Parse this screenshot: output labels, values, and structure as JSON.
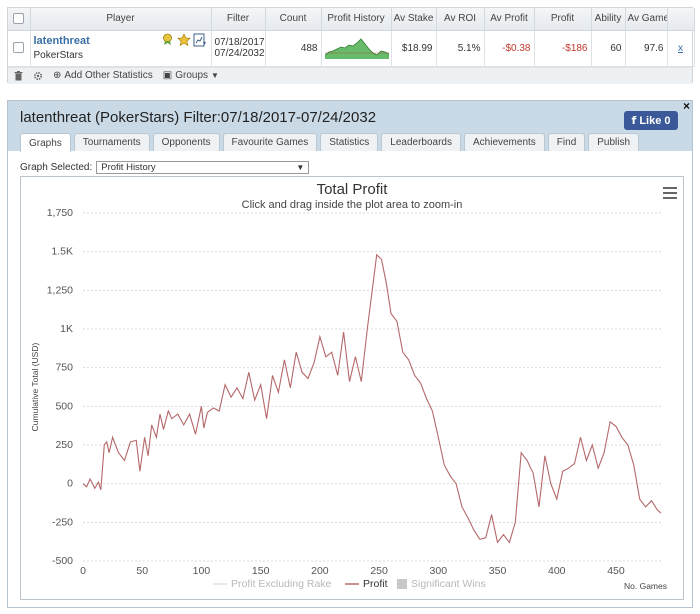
{
  "table": {
    "headers": [
      "Player",
      "Filter",
      "Count",
      "Profit History",
      "Av Stake",
      "Av ROI",
      "Av Profit",
      "Profit",
      "Ability",
      "Av Game"
    ],
    "row": {
      "player": "latenthreat",
      "site": "PokerStars",
      "filter_from": "07/18/2017",
      "filter_to": "07/24/2032",
      "count": "488",
      "av_stake": "$18.99",
      "av_roi": "5.1%",
      "av_profit": "-$0.38",
      "profit": "-$186",
      "ability": "60",
      "av_game": "97.6",
      "remove": "x"
    },
    "icons": [
      "medal-icon",
      "star-icon",
      "chart-icon"
    ]
  },
  "toolbar": {
    "add_stats": "Add Other Statistics",
    "groups": "Groups"
  },
  "panel": {
    "title": "latenthreat (PokerStars) Filter:07/18/2017-07/24/2032",
    "like_label": "Like",
    "like_count": "0",
    "close": "×",
    "tabs": [
      "Graphs",
      "Tournaments",
      "Opponents",
      "Favourite Games",
      "Statistics",
      "Leaderboards",
      "Achievements",
      "Find",
      "Publish"
    ],
    "active_tab": "Graphs",
    "graph_selected_label": "Graph Selected:",
    "graph_selected_value": "Profit History"
  },
  "chart_data": {
    "type": "line",
    "title": "Total Profit",
    "subtitle": "Click and drag inside the plot area to zoom-in",
    "xlabel": "No. Games",
    "ylabel": "Cumulative Total (USD)",
    "xlim": [
      0,
      488
    ],
    "ylim": [
      -500,
      1750
    ],
    "xticks": [
      "0",
      "50",
      "100",
      "150",
      "200",
      "250",
      "300",
      "350",
      "400",
      "450"
    ],
    "yticks": [
      "-500",
      "-250",
      "0",
      "250",
      "500",
      "750",
      "1K",
      "1,250",
      "1.5K",
      "1,750"
    ],
    "ytick_values": [
      -500,
      -250,
      0,
      250,
      500,
      750,
      1000,
      1250,
      1500,
      1750
    ],
    "xtick_values": [
      0,
      50,
      100,
      150,
      200,
      250,
      300,
      350,
      400,
      450
    ],
    "legend": [
      "Profit Excluding Rake",
      "Profit",
      "Significant Wins"
    ],
    "series": [
      {
        "name": "Profit",
        "color": "#b5686a",
        "x": [
          0,
          3,
          6,
          10,
          13,
          15,
          18,
          20,
          22,
          25,
          30,
          35,
          40,
          45,
          48,
          52,
          55,
          58,
          62,
          65,
          68,
          72,
          75,
          80,
          85,
          90,
          95,
          100,
          102,
          105,
          110,
          115,
          120,
          125,
          130,
          135,
          140,
          145,
          150,
          155,
          160,
          165,
          170,
          175,
          180,
          185,
          190,
          195,
          200,
          205,
          210,
          215,
          220,
          225,
          230,
          235,
          240,
          245,
          248,
          252,
          256,
          260,
          265,
          270,
          275,
          280,
          285,
          290,
          295,
          300,
          305,
          310,
          315,
          320,
          325,
          330,
          335,
          340,
          345,
          350,
          355,
          360,
          365,
          370,
          375,
          378,
          380,
          385,
          390,
          395,
          400,
          405,
          410,
          415,
          420,
          425,
          430,
          435,
          440,
          445,
          450,
          455,
          460,
          465,
          470,
          475,
          480,
          485,
          488
        ],
        "y": [
          0,
          -20,
          30,
          -30,
          10,
          -40,
          250,
          270,
          200,
          300,
          200,
          150,
          270,
          280,
          80,
          300,
          180,
          380,
          300,
          450,
          350,
          470,
          420,
          450,
          380,
          450,
          320,
          500,
          360,
          460,
          490,
          470,
          640,
          560,
          620,
          550,
          720,
          540,
          640,
          420,
          700,
          590,
          800,
          620,
          850,
          720,
          680,
          780,
          950,
          820,
          850,
          700,
          980,
          660,
          820,
          660,
          1000,
          1300,
          1480,
          1450,
          1300,
          1100,
          1050,
          850,
          800,
          700,
          650,
          550,
          470,
          300,
          120,
          50,
          0,
          -150,
          -220,
          -300,
          -360,
          -350,
          -200,
          -380,
          -330,
          -380,
          -250,
          200,
          150,
          100,
          70,
          -150,
          180,
          0,
          -100,
          80,
          100,
          130,
          300,
          150,
          250,
          100,
          200,
          400,
          370,
          300,
          250,
          120,
          -100,
          -150,
          -110,
          -170,
          -190
        ]
      }
    ]
  }
}
